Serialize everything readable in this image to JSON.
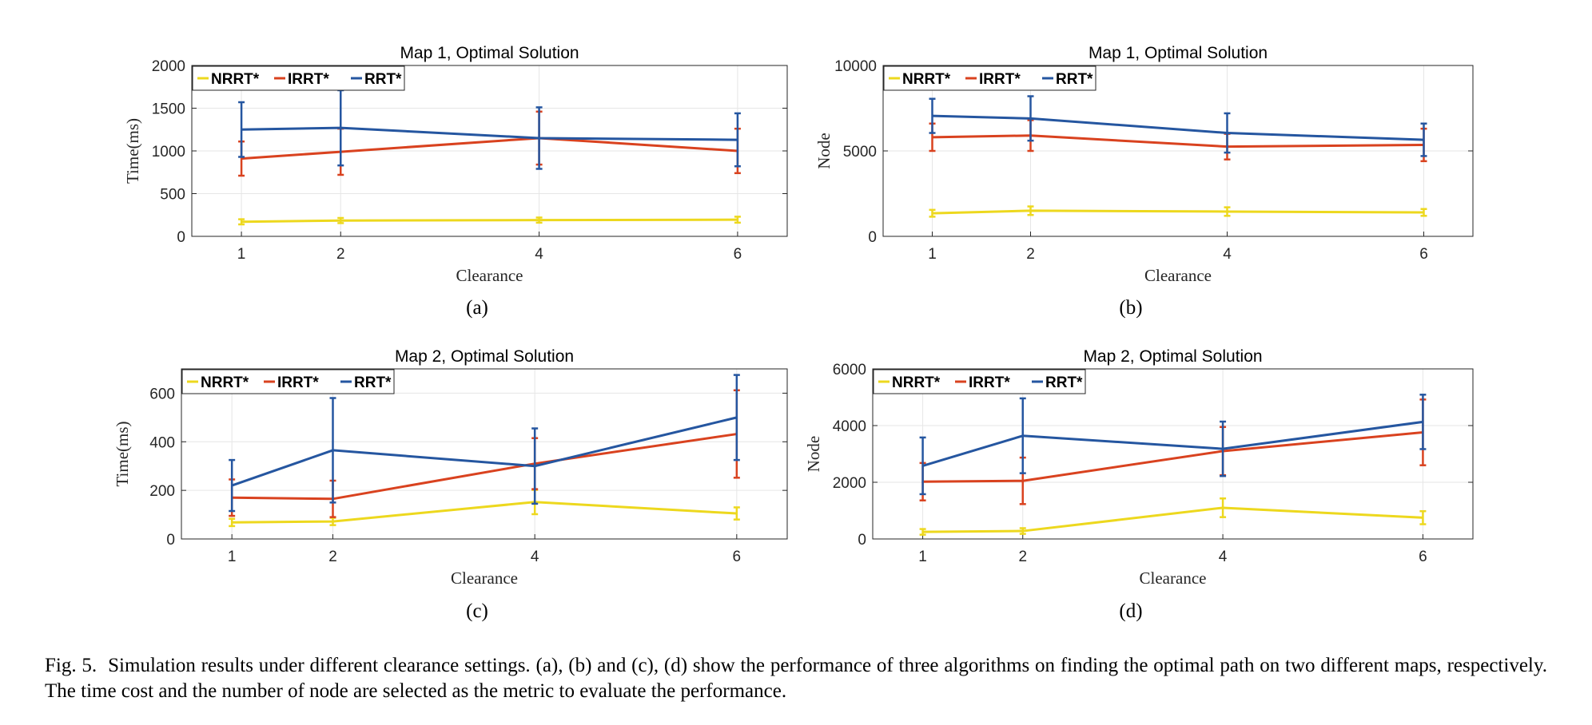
{
  "caption": {
    "figure_number": "Fig. 5.",
    "text": "Simulation results under different clearance settings. (a), (b) and (c), (d) show the performance of three algorithms on finding the optimal path on two different maps, respectively. The time cost and the number of node are selected as the metric to evaluate the performance."
  },
  "colors": {
    "NRRT*": "#EDD81E",
    "IRRT*": "#D9421F",
    "RRT*": "#2556A0"
  },
  "chart_data": [
    {
      "id": "a",
      "sublabel": "(a)",
      "type": "line",
      "title": "Map 1, Optimal Solution",
      "xlabel": "Clearance",
      "ylabel": "Time(ms)",
      "categories": [
        "1",
        "2",
        "4",
        "6"
      ],
      "ylim": [
        0,
        2000
      ],
      "yticks": [
        0,
        500,
        1000,
        1500,
        2000
      ],
      "legend": "top-left",
      "series": [
        {
          "name": "NRRT*",
          "values": [
            170,
            185,
            190,
            195
          ],
          "err": [
            30,
            30,
            30,
            35
          ]
        },
        {
          "name": "IRRT*",
          "values": [
            910,
            990,
            1150,
            1000
          ],
          "err": [
            200,
            270,
            310,
            260
          ]
        },
        {
          "name": "RRT*",
          "values": [
            1250,
            1270,
            1150,
            1130
          ],
          "err": [
            320,
            440,
            360,
            310
          ]
        }
      ]
    },
    {
      "id": "b",
      "sublabel": "(b)",
      "type": "line",
      "title": "Map 1, Optimal Solution",
      "xlabel": "Clearance",
      "ylabel": "Node",
      "categories": [
        "1",
        "2",
        "4",
        "6"
      ],
      "ylim": [
        0,
        10000
      ],
      "yticks": [
        0,
        5000,
        10000
      ],
      "legend": "top-left",
      "series": [
        {
          "name": "NRRT*",
          "values": [
            1350,
            1500,
            1450,
            1400
          ],
          "err": [
            200,
            250,
            250,
            200
          ]
        },
        {
          "name": "IRRT*",
          "values": [
            5800,
            5900,
            5250,
            5350
          ],
          "err": [
            800,
            900,
            750,
            950
          ]
        },
        {
          "name": "RRT*",
          "values": [
            7050,
            6900,
            6050,
            5650
          ],
          "err": [
            1000,
            1300,
            1150,
            950
          ]
        }
      ]
    },
    {
      "id": "c",
      "sublabel": "(c)",
      "type": "line",
      "title": "Map 2, Optimal Solution",
      "xlabel": "Clearance",
      "ylabel": "Time(ms)",
      "categories": [
        "1",
        "2",
        "4",
        "6"
      ],
      "ylim": [
        0,
        700
      ],
      "yticks": [
        0,
        200,
        400,
        600
      ],
      "legend": "top-left",
      "series": [
        {
          "name": "NRRT*",
          "values": [
            68,
            72,
            152,
            105
          ],
          "err": [
            15,
            15,
            50,
            25
          ]
        },
        {
          "name": "IRRT*",
          "values": [
            170,
            165,
            310,
            432
          ],
          "err": [
            75,
            75,
            105,
            180
          ]
        },
        {
          "name": "RRT*",
          "values": [
            220,
            365,
            300,
            500
          ],
          "err": [
            105,
            215,
            155,
            175
          ]
        }
      ]
    },
    {
      "id": "d",
      "sublabel": "(d)",
      "type": "line",
      "title": "Map 2, Optimal Solution",
      "xlabel": "Clearance",
      "ylabel": "Node",
      "categories": [
        "1",
        "2",
        "4",
        "6"
      ],
      "ylim": [
        0,
        6000
      ],
      "yticks": [
        0,
        2000,
        4000,
        6000
      ],
      "legend": "top-left",
      "series": [
        {
          "name": "NRRT*",
          "values": [
            250,
            280,
            1100,
            750
          ],
          "err": [
            100,
            100,
            330,
            230
          ]
        },
        {
          "name": "IRRT*",
          "values": [
            2020,
            2050,
            3100,
            3760
          ],
          "err": [
            660,
            820,
            850,
            1160
          ]
        },
        {
          "name": "RRT*",
          "values": [
            2580,
            3640,
            3180,
            4130
          ],
          "err": [
            1000,
            1320,
            960,
            960
          ]
        }
      ]
    }
  ]
}
